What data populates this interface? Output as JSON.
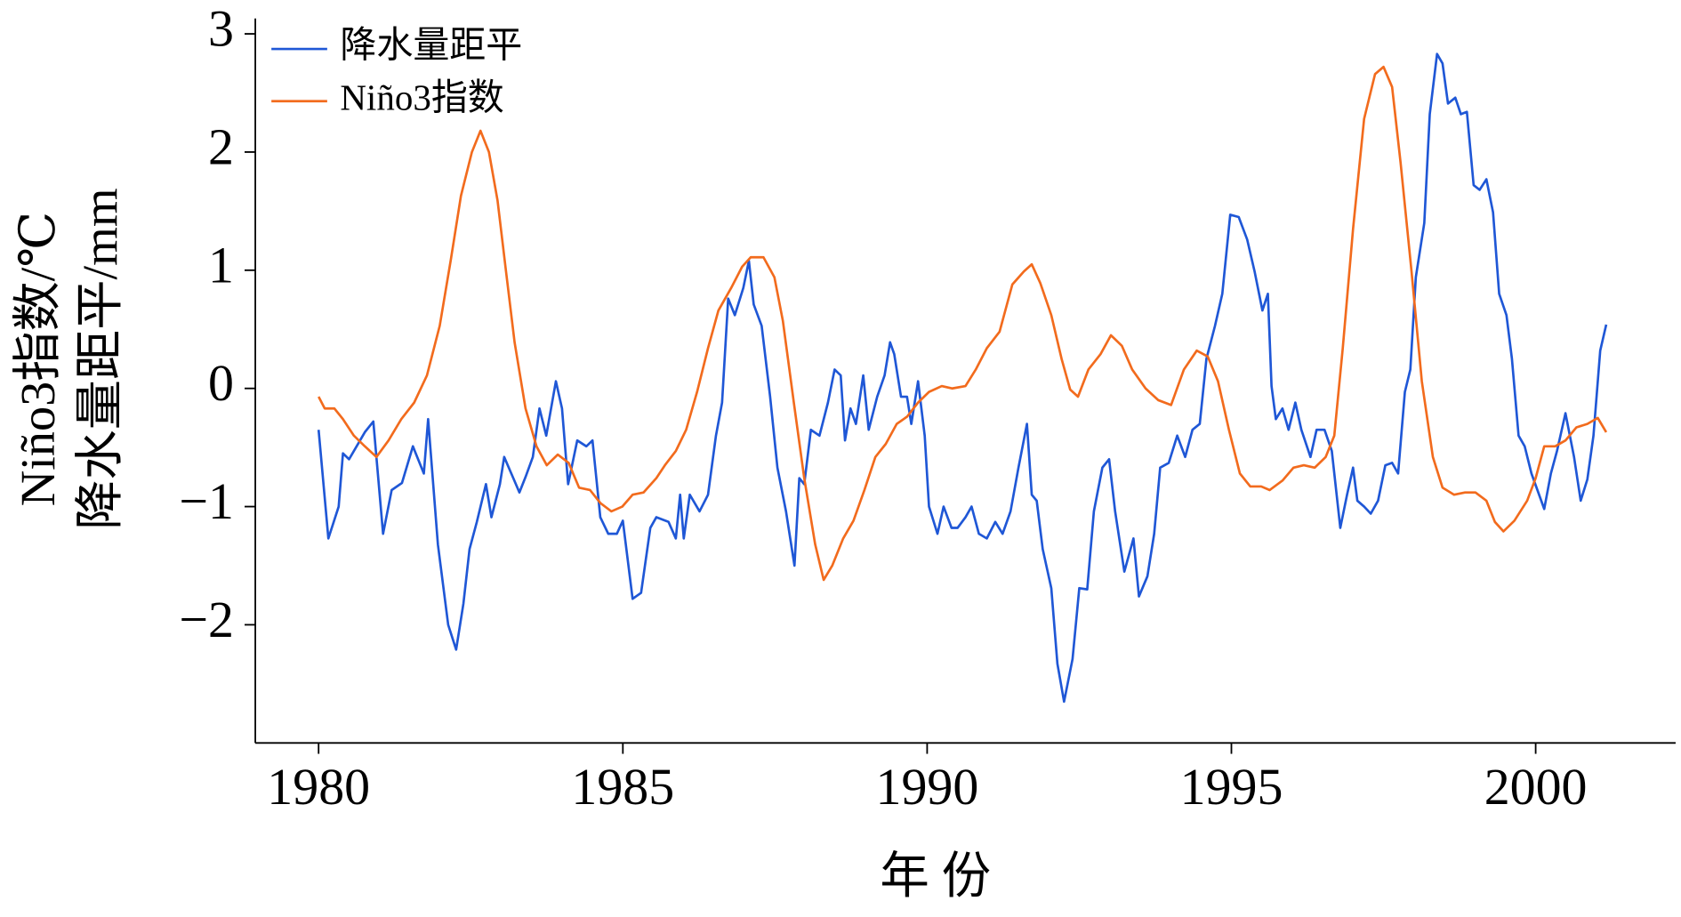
{
  "chart_data": {
    "type": "line",
    "xlabel": "年 份",
    "ylabel": [
      "Niño3指数/℃",
      "降水量距平/mm"
    ],
    "xlim": [
      1978.96,
      2002.3
    ],
    "ylim": [
      -3.0,
      3.13
    ],
    "xticks": [
      1980,
      1985,
      1990,
      1995,
      2000
    ],
    "yticks": [
      {
        "value": -2,
        "label": "−2"
      },
      {
        "value": -1,
        "label": "−1"
      },
      0,
      1,
      2,
      3
    ],
    "legend": "upper left",
    "grid": false,
    "series": [
      {
        "name": "降水量距平",
        "color": "#1f57d6",
        "x": [
          1980.0,
          1980.16,
          1980.33,
          1980.4,
          1980.5,
          1980.76,
          1980.9,
          1981.06,
          1981.2,
          1981.37,
          1981.55,
          1981.73,
          1981.8,
          1981.96,
          1982.13,
          1982.26,
          1982.38,
          1982.48,
          1982.6,
          1982.75,
          1982.84,
          1982.98,
          1983.05,
          1983.2,
          1983.3,
          1983.4,
          1983.52,
          1983.63,
          1983.74,
          1983.9,
          1984.0,
          1984.1,
          1984.25,
          1984.4,
          1984.5,
          1984.63,
          1984.76,
          1984.9,
          1985.0,
          1985.16,
          1985.3,
          1985.45,
          1985.55,
          1985.75,
          1985.87,
          1985.94,
          1986.0,
          1986.1,
          1986.26,
          1986.4,
          1986.53,
          1986.63,
          1986.73,
          1986.84,
          1986.98,
          1987.07,
          1987.15,
          1987.28,
          1987.42,
          1987.54,
          1987.68,
          1987.82,
          1987.9,
          1987.98,
          1988.09,
          1988.23,
          1988.37,
          1988.48,
          1988.58,
          1988.65,
          1988.74,
          1988.83,
          1988.95,
          1989.04,
          1989.18,
          1989.3,
          1989.39,
          1989.46,
          1989.57,
          1989.67,
          1989.74,
          1989.85,
          1989.96,
          1990.03,
          1990.17,
          1990.27,
          1990.4,
          1990.5,
          1990.63,
          1990.73,
          1990.85,
          1990.98,
          1991.12,
          1991.24,
          1991.37,
          1991.5,
          1991.64,
          1991.72,
          1991.8,
          1991.9,
          1992.04,
          1992.14,
          1992.25,
          1992.39,
          1992.5,
          1992.63,
          1992.74,
          1992.88,
          1992.99,
          1993.09,
          1993.24,
          1993.39,
          1993.48,
          1993.62,
          1993.73,
          1993.83,
          1993.97,
          1994.11,
          1994.24,
          1994.36,
          1994.48,
          1994.59,
          1994.73,
          1994.85,
          1994.98,
          1995.12,
          1995.26,
          1995.38,
          1995.51,
          1995.6,
          1995.66,
          1995.73,
          1995.84,
          1995.94,
          1996.05,
          1996.15,
          1996.3,
          1996.4,
          1996.53,
          1996.65,
          1996.79,
          1996.9,
          1997.0,
          1997.07,
          1997.18,
          1997.29,
          1997.41,
          1997.53,
          1997.64,
          1997.74,
          1997.85,
          1997.94,
          1998.03,
          1998.17,
          1998.26,
          1998.38,
          1998.47,
          1998.56,
          1998.68,
          1998.77,
          1998.87,
          1998.98,
          1999.08,
          1999.19,
          1999.3,
          1999.4,
          1999.52,
          1999.61,
          1999.72,
          1999.82,
          1999.93,
          2000.14,
          2000.25,
          2000.35,
          2000.49,
          2000.63,
          2000.74,
          2000.85,
          2000.95,
          2001.06,
          2001.16
        ],
        "values": [
          -0.35,
          -1.27,
          -1.0,
          -0.55,
          -0.6,
          -0.37,
          -0.28,
          -1.23,
          -0.86,
          -0.8,
          -0.49,
          -0.72,
          -0.26,
          -1.32,
          -2.0,
          -2.21,
          -1.82,
          -1.36,
          -1.13,
          -0.81,
          -1.09,
          -0.81,
          -0.58,
          -0.76,
          -0.88,
          -0.75,
          -0.58,
          -0.17,
          -0.4,
          0.06,
          -0.17,
          -0.81,
          -0.44,
          -0.49,
          -0.44,
          -1.09,
          -1.23,
          -1.23,
          -1.12,
          -1.78,
          -1.73,
          -1.18,
          -1.09,
          -1.13,
          -1.27,
          -0.9,
          -1.27,
          -0.9,
          -1.04,
          -0.9,
          -0.4,
          -0.12,
          0.76,
          0.62,
          0.85,
          1.08,
          0.71,
          0.53,
          -0.07,
          -0.67,
          -1.04,
          -1.5,
          -0.76,
          -0.81,
          -0.35,
          -0.4,
          -0.12,
          0.16,
          0.11,
          -0.44,
          -0.17,
          -0.3,
          0.11,
          -0.35,
          -0.07,
          0.11,
          0.39,
          0.29,
          -0.07,
          -0.07,
          -0.3,
          0.06,
          -0.4,
          -1.0,
          -1.23,
          -1.0,
          -1.18,
          -1.18,
          -1.09,
          -1.0,
          -1.23,
          -1.27,
          -1.13,
          -1.23,
          -1.04,
          -0.67,
          -0.3,
          -0.9,
          -0.95,
          -1.36,
          -1.69,
          -2.33,
          -2.65,
          -2.29,
          -1.69,
          -1.7,
          -1.04,
          -0.67,
          -0.6,
          -1.04,
          -1.55,
          -1.27,
          -1.76,
          -1.59,
          -1.23,
          -0.67,
          -0.63,
          -0.4,
          -0.58,
          -0.35,
          -0.3,
          0.25,
          0.53,
          0.8,
          1.47,
          1.45,
          1.26,
          0.99,
          0.66,
          0.8,
          0.02,
          -0.26,
          -0.17,
          -0.35,
          -0.12,
          -0.35,
          -0.58,
          -0.35,
          -0.35,
          -0.53,
          -1.18,
          -0.9,
          -0.67,
          -0.95,
          -1.0,
          -1.06,
          -0.95,
          -0.65,
          -0.63,
          -0.72,
          -0.03,
          0.16,
          0.94,
          1.4,
          2.32,
          2.83,
          2.75,
          2.41,
          2.46,
          2.32,
          2.34,
          1.72,
          1.68,
          1.77,
          1.49,
          0.8,
          0.62,
          0.25,
          -0.4,
          -0.49,
          -0.72,
          -1.02,
          -0.72,
          -0.53,
          -0.21,
          -0.58,
          -0.95,
          -0.77,
          -0.4,
          0.32,
          0.54
        ]
      },
      {
        "name": "Niño3指数",
        "color": "#f26b1d",
        "x": [
          1980.0,
          1980.1,
          1980.26,
          1980.4,
          1980.58,
          1980.76,
          1980.95,
          1981.15,
          1981.36,
          1981.57,
          1981.78,
          1981.99,
          1982.17,
          1982.34,
          1982.52,
          1982.66,
          1982.8,
          1982.94,
          1983.08,
          1983.22,
          1983.4,
          1983.58,
          1983.75,
          1983.93,
          1984.11,
          1984.28,
          1984.46,
          1984.63,
          1984.81,
          1984.99,
          1985.16,
          1985.34,
          1985.55,
          1985.69,
          1985.87,
          1986.04,
          1986.22,
          1986.4,
          1986.57,
          1986.78,
          1986.96,
          1987.1,
          1987.31,
          1987.49,
          1987.63,
          1987.81,
          1987.98,
          1988.16,
          1988.3,
          1988.44,
          1988.62,
          1988.79,
          1988.97,
          1989.15,
          1989.32,
          1989.5,
          1989.67,
          1989.85,
          1990.03,
          1990.24,
          1990.41,
          1990.63,
          1990.8,
          1990.98,
          1991.19,
          1991.4,
          1991.59,
          1991.72,
          1991.86,
          1992.04,
          1992.21,
          1992.35,
          1992.48,
          1992.65,
          1992.85,
          1993.02,
          1993.2,
          1993.37,
          1993.59,
          1993.8,
          1994.01,
          1994.22,
          1994.43,
          1994.61,
          1994.78,
          1994.96,
          1995.14,
          1995.31,
          1995.49,
          1995.63,
          1995.84,
          1996.02,
          1996.19,
          1996.37,
          1996.55,
          1996.69,
          1996.83,
          1997.0,
          1997.18,
          1997.36,
          1997.5,
          1997.64,
          1997.78,
          1997.96,
          1998.13,
          1998.31,
          1998.47,
          1998.66,
          1998.84,
          1999.01,
          1999.19,
          1999.33,
          1999.47,
          1999.65,
          1999.86,
          2000.0,
          2000.14,
          2000.32,
          2000.49,
          2000.67,
          2000.85,
          2001.02,
          2001.16
        ],
        "values": [
          -0.07,
          -0.17,
          -0.17,
          -0.26,
          -0.4,
          -0.49,
          -0.58,
          -0.44,
          -0.26,
          -0.12,
          0.11,
          0.53,
          1.08,
          1.63,
          2.0,
          2.18,
          2.0,
          1.59,
          0.99,
          0.39,
          -0.17,
          -0.49,
          -0.65,
          -0.56,
          -0.63,
          -0.84,
          -0.86,
          -0.97,
          -1.04,
          -1.0,
          -0.9,
          -0.88,
          -0.76,
          -0.65,
          -0.53,
          -0.35,
          -0.03,
          0.34,
          0.66,
          0.85,
          1.03,
          1.11,
          1.11,
          0.94,
          0.57,
          -0.12,
          -0.76,
          -1.32,
          -1.62,
          -1.5,
          -1.27,
          -1.12,
          -0.86,
          -0.58,
          -0.47,
          -0.3,
          -0.24,
          -0.12,
          -0.03,
          0.02,
          0.0,
          0.02,
          0.16,
          0.34,
          0.48,
          0.88,
          0.99,
          1.05,
          0.89,
          0.62,
          0.25,
          -0.01,
          -0.07,
          0.16,
          0.29,
          0.45,
          0.36,
          0.16,
          0.0,
          -0.1,
          -0.14,
          0.16,
          0.32,
          0.27,
          0.06,
          -0.35,
          -0.72,
          -0.83,
          -0.83,
          -0.86,
          -0.78,
          -0.67,
          -0.65,
          -0.67,
          -0.58,
          -0.4,
          0.34,
          1.35,
          2.28,
          2.66,
          2.72,
          2.55,
          1.91,
          0.99,
          0.06,
          -0.58,
          -0.84,
          -0.9,
          -0.88,
          -0.88,
          -0.95,
          -1.13,
          -1.21,
          -1.12,
          -0.95,
          -0.76,
          -0.49,
          -0.49,
          -0.44,
          -0.33,
          -0.3,
          -0.25,
          -0.37
        ]
      }
    ]
  }
}
